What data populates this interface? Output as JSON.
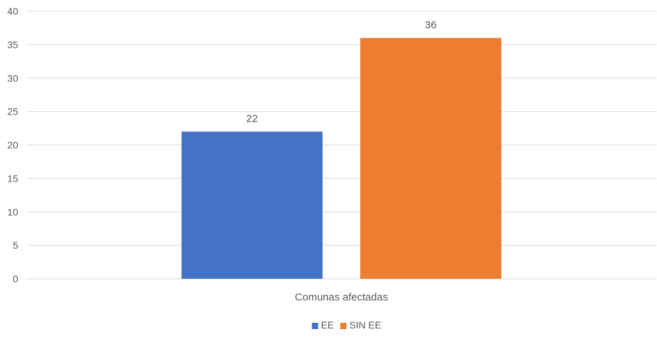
{
  "chart_data": {
    "type": "bar",
    "categories": [
      "Comunas afectadas"
    ],
    "series": [
      {
        "name": "EE",
        "values": [
          22
        ],
        "color": "#4472C4"
      },
      {
        "name": "SIN EE",
        "values": [
          36
        ],
        "color": "#ED7D31"
      }
    ],
    "yticks": [
      "0",
      "5",
      "10",
      "15",
      "20",
      "25",
      "30",
      "35",
      "40"
    ],
    "ylim": [
      0,
      40
    ],
    "grid": true,
    "legend_position": "bottom"
  }
}
